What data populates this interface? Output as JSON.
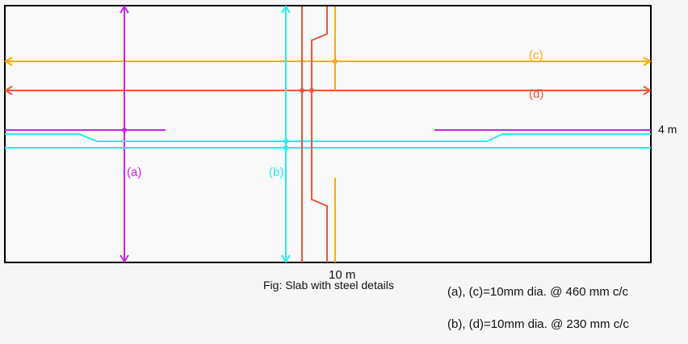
{
  "labels": {
    "a": "(a)",
    "b": "(b)",
    "c": "(c)",
    "d": "(d)",
    "width": "10 m",
    "height": "4 m",
    "caption": "Fig: Slab with steel details"
  },
  "legend": {
    "ac": "(a), (c)=10mm dia. @ 460 mm c/c",
    "bd": "(b), (d)=10mm dia. @ 230 mm c/c"
  },
  "colors": {
    "a": "#cc22ee",
    "b": "#22eeee",
    "c": "#ffaa00",
    "d": "#ee5533",
    "outline": "#000000"
  }
}
